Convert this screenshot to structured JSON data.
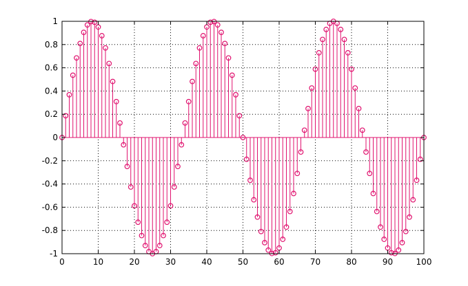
{
  "chart_data": {
    "type": "stem",
    "title": "",
    "xlabel": "",
    "ylabel": "",
    "xlim": [
      0,
      100
    ],
    "ylim": [
      -1,
      1
    ],
    "grid": true,
    "legend": "none",
    "x_ticks": [
      0,
      10,
      20,
      30,
      40,
      50,
      60,
      70,
      80,
      90,
      100
    ],
    "y_ticks": [
      -1,
      -0.8,
      -0.6,
      -0.4,
      -0.2,
      0,
      0.2,
      0.4,
      0.6,
      0.8,
      1
    ],
    "x_tick_labels": [
      "0",
      "10",
      "20",
      "30",
      "40",
      "50",
      "60",
      "70",
      "80",
      "90",
      "100"
    ],
    "y_tick_labels": [
      "-1",
      "-0.8",
      "-0.6",
      "-0.4",
      "-0.2",
      "0",
      "0.2",
      "0.4",
      "0.6",
      "0.8",
      "1"
    ],
    "series_color": "#e0116e",
    "marker": "circle-open",
    "x": [
      0,
      1,
      2,
      3,
      4,
      5,
      6,
      7,
      8,
      9,
      10,
      11,
      12,
      13,
      14,
      15,
      16,
      17,
      18,
      19,
      20,
      21,
      22,
      23,
      24,
      25,
      26,
      27,
      28,
      29,
      30,
      31,
      32,
      33,
      34,
      35,
      36,
      37,
      38,
      39,
      40,
      41,
      42,
      43,
      44,
      45,
      46,
      47,
      48,
      49,
      50,
      51,
      52,
      53,
      54,
      55,
      56,
      57,
      58,
      59,
      60,
      61,
      62,
      63,
      64,
      65,
      66,
      67,
      68,
      69,
      70,
      71,
      72,
      73,
      74,
      75,
      76,
      77,
      78,
      79,
      80,
      81,
      82,
      83,
      84,
      85,
      86,
      87,
      88,
      89,
      90,
      91,
      92,
      93,
      94,
      95,
      96,
      97,
      98,
      99,
      100
    ],
    "values": [
      0,
      0.187,
      0.368,
      0.536,
      0.685,
      0.809,
      0.905,
      0.969,
      0.998,
      0.992,
      0.951,
      0.876,
      0.771,
      0.637,
      0.482,
      0.309,
      0.125,
      -0.063,
      -0.249,
      -0.426,
      -0.588,
      -0.729,
      -0.844,
      -0.93,
      -0.982,
      -1.0,
      -0.982,
      -0.93,
      -0.844,
      -0.729,
      -0.588,
      -0.426,
      -0.249,
      -0.063,
      0.125,
      0.309,
      0.482,
      0.637,
      0.771,
      0.876,
      0.951,
      0.992,
      0.998,
      0.969,
      0.905,
      0.809,
      0.685,
      0.536,
      0.368,
      0.187,
      0,
      -0.187,
      -0.368,
      -0.536,
      -0.685,
      -0.809,
      -0.905,
      -0.969,
      -0.998,
      -0.992,
      -0.951,
      -0.876,
      -0.771,
      -0.637,
      -0.482,
      -0.309,
      -0.125,
      0.063,
      0.249,
      0.426,
      0.588,
      0.729,
      0.844,
      0.93,
      0.982,
      1.0,
      0.982,
      0.93,
      0.844,
      0.729,
      0.588,
      0.426,
      0.249,
      0.063,
      -0.125,
      -0.309,
      -0.482,
      -0.637,
      -0.771,
      -0.876,
      -0.951,
      -0.992,
      -0.998,
      -0.969,
      -0.905,
      -0.809,
      -0.685,
      -0.536,
      -0.368,
      -0.187,
      0
    ]
  }
}
